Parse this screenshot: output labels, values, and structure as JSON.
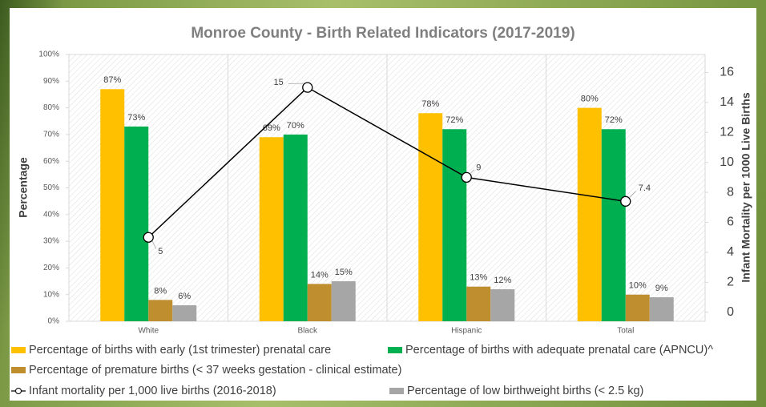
{
  "chart_data": {
    "type": "bar",
    "title": "Monroe County - Birth Related Indicators (2017-2019)",
    "y_label": "Percentage",
    "y2_label": "Infant Mortality per 1000 Live Births",
    "categories": [
      "White",
      "Black",
      "Hispanic",
      "Total"
    ],
    "series": [
      {
        "name": "Percentage of births with early (1st trimester) prenatal care",
        "color": "#ffc000",
        "values": [
          87,
          69,
          78,
          80
        ],
        "value_labels": [
          "87%",
          "69%",
          "78%",
          "80%"
        ]
      },
      {
        "name": "Percentage of births with adequate prenatal care (APNCU)^",
        "color": "#00b050",
        "values": [
          73,
          70,
          72,
          72
        ],
        "value_labels": [
          "73%",
          "70%",
          "72%",
          "72%"
        ]
      },
      {
        "name": "Percentage of premature births (< 37 weeks gestation - clinical estimate)",
        "color": "#bf8f2f",
        "values": [
          8,
          14,
          13,
          10
        ],
        "value_labels": [
          "8%",
          "14%",
          "13%",
          "10%"
        ]
      },
      {
        "name": "Infant mortality per 1,000 live births (2016-2018)",
        "color": "#000000",
        "type": "line",
        "axis": "y2",
        "values": [
          5,
          15,
          9,
          7.4
        ]
      },
      {
        "name": "Percentage of low birthweight births (< 2.5 kg)",
        "color": "#a6a6a6",
        "values": [
          6,
          15,
          12,
          9
        ],
        "value_labels": [
          "6%",
          "15%",
          "12%",
          "9%"
        ]
      }
    ],
    "ylim": [
      0,
      100
    ],
    "yticks": [
      {
        "value": 0,
        "label": "0%"
      },
      {
        "value": 10,
        "label": "10%"
      },
      {
        "value": 20,
        "label": "20%"
      },
      {
        "value": 30,
        "label": "30%"
      },
      {
        "value": 40,
        "label": "40%"
      },
      {
        "value": 50,
        "label": "50%"
      },
      {
        "value": 60,
        "label": "60%"
      },
      {
        "value": 70,
        "label": "70%"
      },
      {
        "value": 80,
        "label": "80%"
      },
      {
        "value": 90,
        "label": "90%"
      },
      {
        "value": 100,
        "label": "100%"
      }
    ],
    "y2lim": [
      -0.6,
      17.2
    ],
    "y2ticks": [
      0,
      2,
      4,
      6,
      8,
      10,
      12,
      14,
      16
    ],
    "legend": "bottom"
  }
}
